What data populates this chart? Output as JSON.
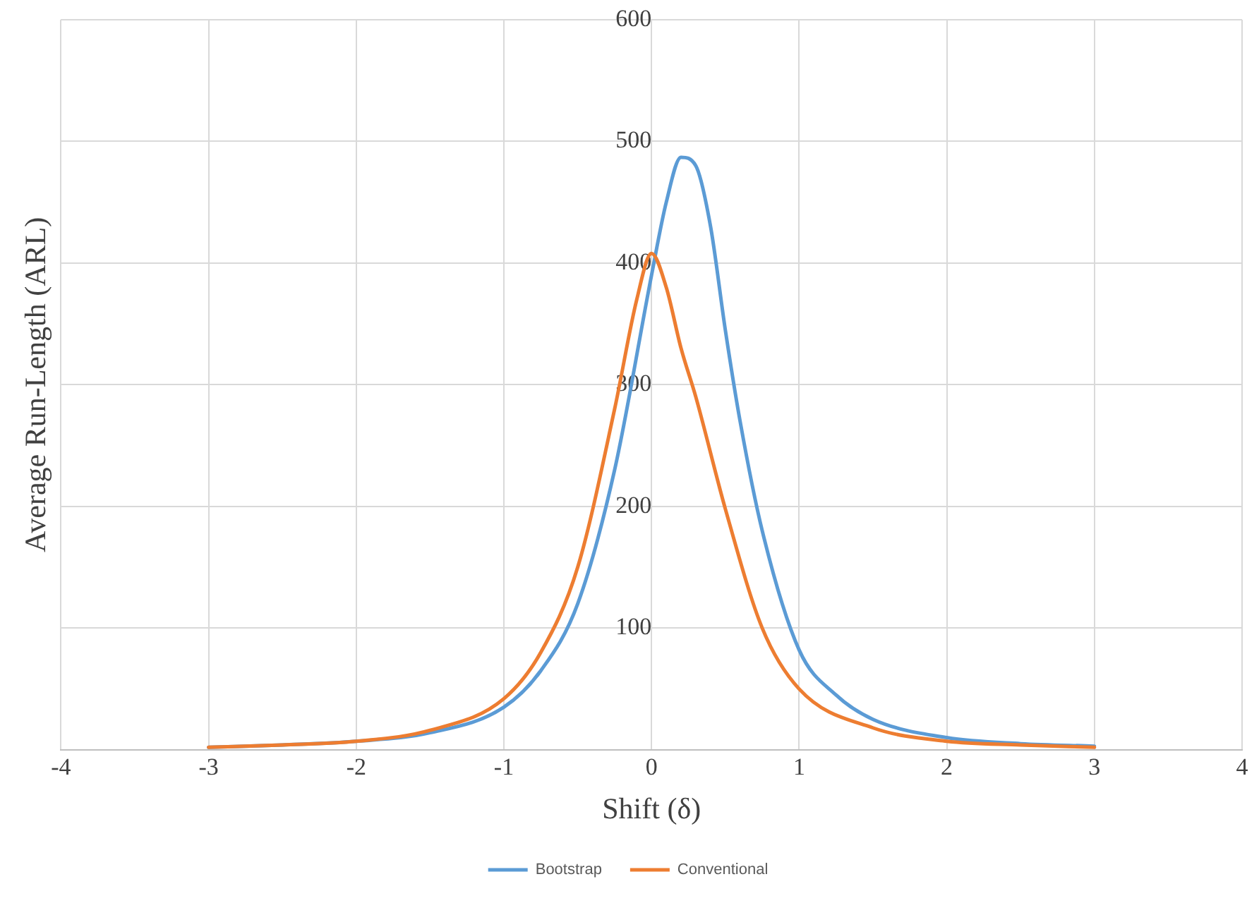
{
  "chart_data": {
    "type": "line",
    "xlabel": "Shift (δ)",
    "ylabel": "Average Run-Length (ARL)",
    "xlim": [
      -4,
      4
    ],
    "xticks": [
      -4,
      -3,
      -2,
      -1,
      0,
      1,
      2,
      3,
      4
    ],
    "ylim": [
      0,
      600
    ],
    "yticks": [
      {
        "value": 0,
        "label": null
      },
      100,
      200,
      300,
      400,
      500,
      600
    ],
    "grid": true,
    "legend": "bottom",
    "marker": "none",
    "line_style": "solid",
    "series": [
      {
        "name": "Bootstrap",
        "color": "#5b9bd5",
        "x": [
          -3,
          -2.5,
          -2,
          -1.5,
          -1,
          -0.75,
          -0.5,
          -0.25,
          0,
          0.1,
          0.2,
          0.3,
          0.4,
          0.5,
          0.6,
          0.75,
          1,
          1.25,
          1.5,
          2,
          2.5,
          3
        ],
        "values": [
          2,
          4,
          7,
          14,
          35,
          65,
          120,
          230,
          390,
          450,
          487,
          480,
          430,
          345,
          270,
          180,
          82,
          45,
          25,
          10,
          5,
          3
        ]
      },
      {
        "name": "Conventional",
        "color": "#ed7d31",
        "x": [
          -3,
          -2.5,
          -2,
          -1.5,
          -1,
          -0.75,
          -0.5,
          -0.25,
          -0.1,
          0,
          0.1,
          0.2,
          0.3,
          0.5,
          0.75,
          1,
          1.5,
          2,
          2.5,
          3
        ],
        "values": [
          2,
          4,
          7,
          16,
          42,
          80,
          150,
          280,
          370,
          408,
          380,
          330,
          290,
          198,
          100,
          50,
          18,
          7,
          4,
          2
        ]
      }
    ]
  }
}
